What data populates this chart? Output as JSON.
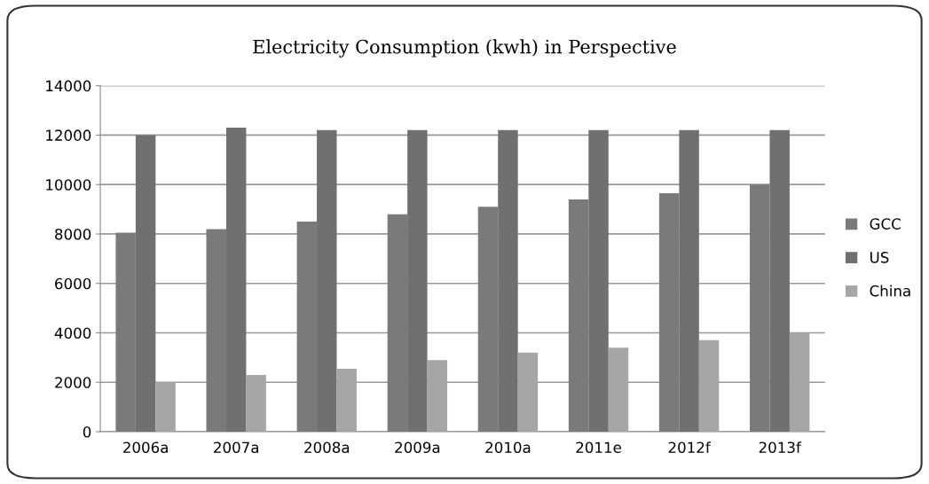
{
  "chart_data": {
    "type": "bar",
    "title": "Electricity Consumption (kwh) in Perspective",
    "categories": [
      "2006a",
      "2007a",
      "2008a",
      "2009a",
      "2010a",
      "2011e",
      "2012f",
      "2013f"
    ],
    "series": [
      {
        "name": "GCC",
        "color": "#7a7a7a",
        "values": [
          8050,
          8200,
          8500,
          8800,
          9100,
          9400,
          9650,
          10000
        ]
      },
      {
        "name": "US",
        "color": "#707070",
        "values": [
          12000,
          12300,
          12200,
          12200,
          12200,
          12200,
          12200,
          12200
        ]
      },
      {
        "name": "China",
        "color": "#a6a6a6",
        "values": [
          2000,
          2300,
          2550,
          2900,
          3200,
          3400,
          3700,
          4000
        ]
      }
    ],
    "ylim": [
      0,
      14000
    ],
    "yticks": [
      0,
      2000,
      4000,
      6000,
      8000,
      10000,
      12000,
      14000
    ],
    "grid": "y",
    "legend": "right"
  }
}
